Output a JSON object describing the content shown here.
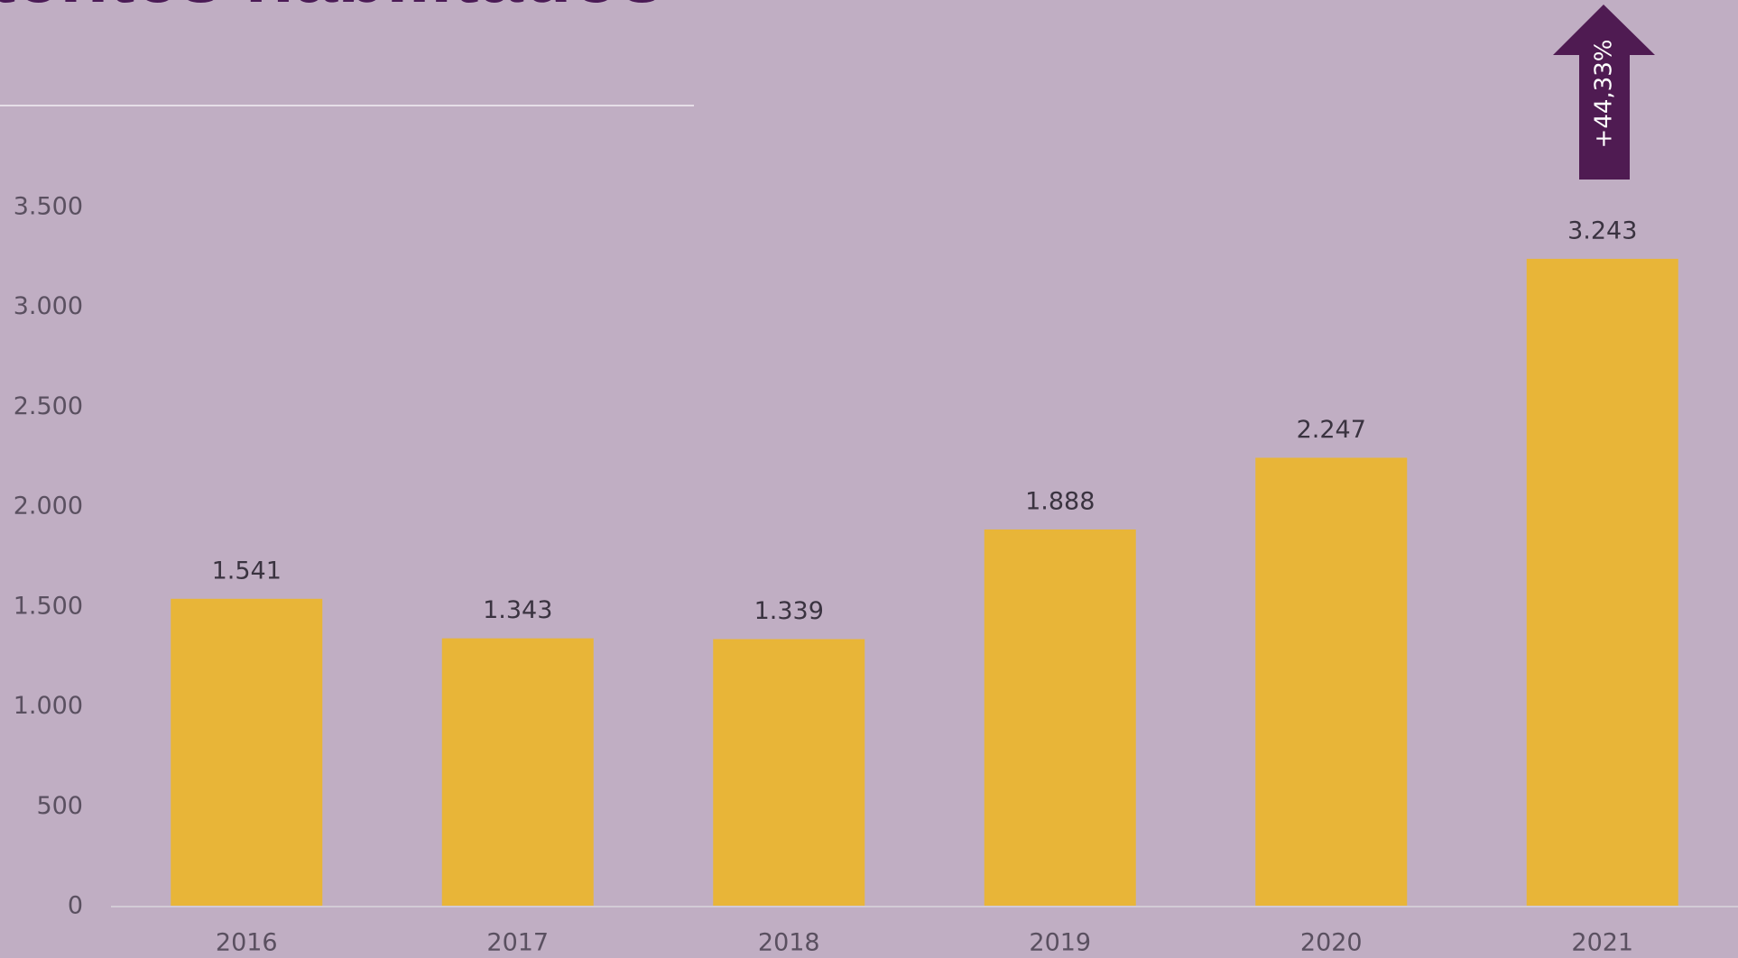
{
  "chart_data": {
    "type": "bar",
    "title": "tentes habilitados",
    "categories": [
      "2016",
      "2017",
      "2018",
      "2019",
      "2020",
      "2021"
    ],
    "values": [
      1541,
      1343,
      1339,
      1888,
      2247,
      3243
    ],
    "value_labels": [
      "1.541",
      "1.343",
      "1.339",
      "1.888",
      "2.247",
      "3.243"
    ],
    "color": "#e8b538",
    "ylim": [
      0,
      3500
    ],
    "yticks": [
      0,
      500,
      {
        "value": 1000,
        "label": "1.000"
      },
      {
        "value": 1500,
        "label": "1.500"
      },
      {
        "value": 2000,
        "label": "2.000"
      },
      {
        "value": 2500,
        "label": "2.500"
      },
      {
        "value": 3000,
        "label": "3.000"
      },
      {
        "value": 3500,
        "label": "3.500"
      }
    ],
    "grid": false,
    "annotation": "+44,33%"
  }
}
